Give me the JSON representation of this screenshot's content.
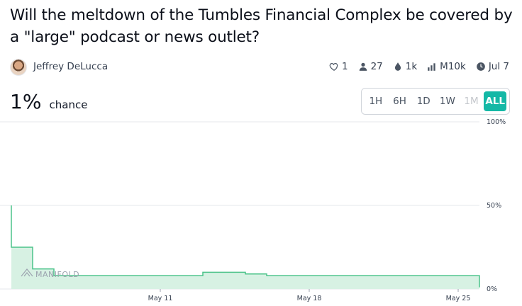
{
  "question": "Will the meltdown of the Tumbles Financial Complex be covered by a \"large\" podcast or news outlet?",
  "author": {
    "name": "Jeffrey DeLucca"
  },
  "stats": {
    "likes": "1",
    "traders": "27",
    "liquidity": "1k",
    "volume": "M10k",
    "close_date": "Jul 7"
  },
  "probability": {
    "value": "1%",
    "label": "chance"
  },
  "time_ranges": [
    {
      "label": "1H",
      "state": "normal"
    },
    {
      "label": "6H",
      "state": "normal"
    },
    {
      "label": "1D",
      "state": "normal"
    },
    {
      "label": "1W",
      "state": "normal"
    },
    {
      "label": "1M",
      "state": "disabled"
    },
    {
      "label": "ALL",
      "state": "active"
    }
  ],
  "watermark": "MANIFOLD",
  "colors": {
    "accent": "#14b8a6",
    "line": "#4cc38a",
    "fill": "#d7f1e3"
  },
  "chart_data": {
    "type": "area",
    "x_ticks": [
      "May 11",
      "May 18",
      "May 25"
    ],
    "y_ticks": [
      "100%",
      "50%",
      "0%"
    ],
    "ylim": [
      0,
      100
    ],
    "xlim": [
      "May 4",
      "May 26"
    ],
    "series": [
      {
        "x": [
          "May 4",
          "May 4",
          "May 4",
          "May 5",
          "May 5",
          "May 5",
          "May 6",
          "May 6",
          "May 11",
          "May 13",
          "May 15",
          "May 16",
          "May 26"
        ],
        "values": [
          50,
          46,
          25,
          24,
          17,
          12,
          9,
          8,
          8,
          10,
          9,
          8,
          1
        ]
      }
    ]
  }
}
